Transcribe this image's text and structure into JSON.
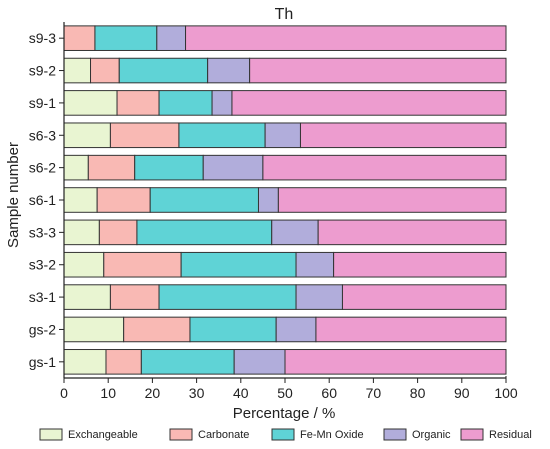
{
  "chart_data": {
    "type": "bar",
    "orientation": "horizontal",
    "stacked": true,
    "title": "Th",
    "xlabel": "Percentage / %",
    "ylabel": "Sample number",
    "xlim": [
      0,
      100
    ],
    "xticks": [
      "0",
      "10",
      "20",
      "30",
      "40",
      "50",
      "60",
      "70",
      "80",
      "90",
      "100"
    ],
    "categories": [
      "s9-3",
      "s9-2",
      "s9-1",
      "s6-3",
      "s6-2",
      "s6-1",
      "s3-3",
      "s3-2",
      "s3-1",
      "gs-2",
      "gs-1"
    ],
    "series": [
      {
        "name": "Exchangeable",
        "color": "#e9f5d2",
        "values": [
          0.0,
          6.0,
          12.0,
          10.5,
          5.5,
          7.5,
          8.0,
          9.0,
          10.5,
          13.5,
          9.5
        ]
      },
      {
        "name": "Carbonate",
        "color": "#f9b9b4",
        "values": [
          7.0,
          6.5,
          9.5,
          15.5,
          10.5,
          12.0,
          8.5,
          17.5,
          11.0,
          15.0,
          8.0
        ]
      },
      {
        "name": "Fe-Mn Oxide",
        "color": "#5fd3d6",
        "values": [
          14.0,
          20.0,
          12.0,
          19.5,
          15.5,
          24.5,
          30.5,
          26.0,
          31.0,
          19.5,
          21.0
        ]
      },
      {
        "name": "Organic",
        "color": "#b1addb",
        "values": [
          6.5,
          9.5,
          4.5,
          8.0,
          13.5,
          4.5,
          10.5,
          8.5,
          10.5,
          9.0,
          11.5
        ]
      },
      {
        "name": "Residual",
        "color": "#ed9ccf",
        "values": [
          72.5,
          58.0,
          62.0,
          46.5,
          55.0,
          51.5,
          42.5,
          39.0,
          37.0,
          43.0,
          50.0
        ]
      }
    ],
    "grid": false,
    "legend_position": "bottom"
  }
}
